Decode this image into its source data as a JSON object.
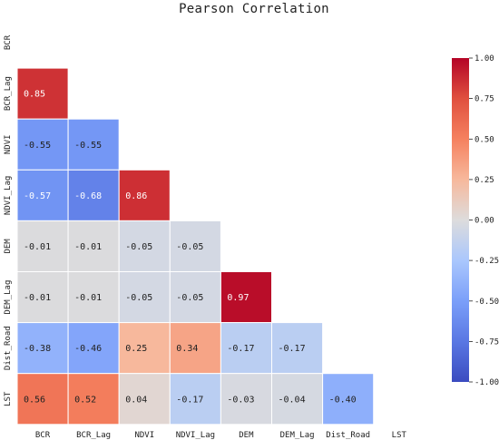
{
  "chart_data": {
    "type": "heatmap",
    "title": "Pearson Correlation",
    "variables": [
      "BCR",
      "BCR_Lag",
      "NDVI",
      "NDVI_Lag",
      "DEM",
      "DEM_Lag",
      "Dist_Road",
      "LST"
    ],
    "mask": "upper triangle including diagonal",
    "rows": [
      {
        "name": "BCR",
        "values": []
      },
      {
        "name": "BCR_Lag",
        "values": [
          0.85
        ]
      },
      {
        "name": "NDVI",
        "values": [
          -0.55,
          -0.55
        ]
      },
      {
        "name": "NDVI_Lag",
        "values": [
          -0.57,
          -0.68,
          0.86
        ]
      },
      {
        "name": "DEM",
        "values": [
          -0.01,
          -0.01,
          -0.05,
          -0.05
        ]
      },
      {
        "name": "DEM_Lag",
        "values": [
          -0.01,
          -0.01,
          -0.05,
          -0.05,
          0.97
        ]
      },
      {
        "name": "Dist_Road",
        "values": [
          -0.38,
          -0.46,
          0.25,
          0.34,
          -0.17,
          -0.17
        ]
      },
      {
        "name": "LST",
        "values": [
          0.56,
          0.52,
          0.04,
          -0.17,
          -0.03,
          -0.04,
          -0.4
        ]
      }
    ],
    "colormap": "coolwarm",
    "vmin": -1.0,
    "vmax": 1.0,
    "colorbar_ticks": [
      "1.00",
      "0.75",
      "0.50",
      "0.25",
      "0.00",
      "-0.25",
      "-0.50",
      "-0.75",
      "-1.00"
    ],
    "colorbar_tick_values": [
      1.0,
      0.75,
      0.5,
      0.25,
      0.0,
      -0.25,
      -0.5,
      -0.75,
      -1.0
    ],
    "grid_lines": "white"
  }
}
